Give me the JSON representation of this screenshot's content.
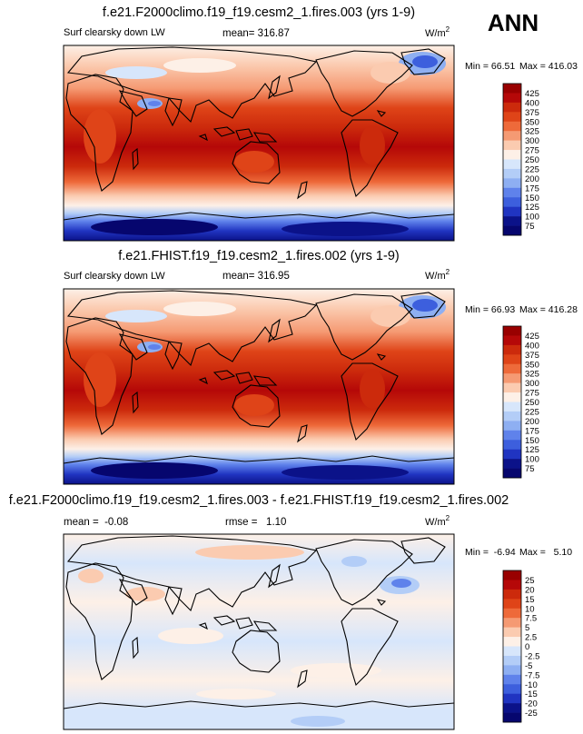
{
  "season": "ANN",
  "chart_data": [
    {
      "type": "heatmap",
      "title": "f.e21.F2000climo.f19_f19.cesm2_1.fires.003 (yrs 1-9)",
      "variable": "Surf clearsky down LW",
      "mean_text": "mean= 316.87",
      "units_base": "W/m",
      "units_exp": "2",
      "min_text": "Min = 66.51",
      "max_text": "Max = 416.03",
      "colorbar_levels": [
        "425",
        "400",
        "375",
        "350",
        "325",
        "300",
        "275",
        "250",
        "225",
        "200",
        "175",
        "150",
        "125",
        "100",
        "75"
      ],
      "colorbar_colors": [
        "#990000",
        "#b50808",
        "#cc2a0c",
        "#df4418",
        "#ee6a3a",
        "#f59a73",
        "#fbcbb0",
        "#fdf0e7",
        "#d7e6fb",
        "#b3cdf7",
        "#8eaff2",
        "#5f82eb",
        "#3d5fdd",
        "#2034c1",
        "#0b1289",
        "#06066e"
      ]
    },
    {
      "type": "heatmap",
      "title": "f.e21.FHIST.f19_f19.cesm2_1.fires.002 (yrs 1-9)",
      "variable": "Surf clearsky down LW",
      "mean_text": "mean= 316.95",
      "units_base": "W/m",
      "units_exp": "2",
      "min_text": "Min =  66.93",
      "max_text": "Max = 416.28",
      "colorbar_levels": [
        "425",
        "400",
        "375",
        "350",
        "325",
        "300",
        "275",
        "250",
        "225",
        "200",
        "175",
        "150",
        "125",
        "100",
        "75"
      ],
      "colorbar_colors": [
        "#990000",
        "#b50808",
        "#cc2a0c",
        "#df4418",
        "#ee6a3a",
        "#f59a73",
        "#fbcbb0",
        "#fdf0e7",
        "#d7e6fb",
        "#b3cdf7",
        "#8eaff2",
        "#5f82eb",
        "#3d5fdd",
        "#2034c1",
        "#0b1289",
        "#06066e"
      ]
    },
    {
      "type": "heatmap",
      "title": "f.e21.F2000climo.f19_f19.cesm2_1.fires.003 - f.e21.FHIST.f19_f19.cesm2_1.fires.002",
      "mean_text": "mean =  -0.08",
      "rmse_text": "rmse =   1.10",
      "units_base": "W/m",
      "units_exp": "2",
      "min_text": "Min =  -6.94",
      "max_text": "Max =   5.10",
      "colorbar_levels": [
        "25",
        "20",
        "15",
        "10",
        "7.5",
        "5",
        "2.5",
        "0",
        "-2.5",
        "-5",
        "-7.5",
        "-10",
        "-15",
        "-20",
        "-25"
      ],
      "colorbar_colors": [
        "#990000",
        "#b50808",
        "#cc2a0c",
        "#df4418",
        "#ee6a3a",
        "#f59a73",
        "#fbcbb0",
        "#fdf0e7",
        "#d7e6fb",
        "#b3cdf7",
        "#8eaff2",
        "#5f82eb",
        "#3d5fdd",
        "#2034c1",
        "#0b1289",
        "#06066e"
      ]
    }
  ]
}
